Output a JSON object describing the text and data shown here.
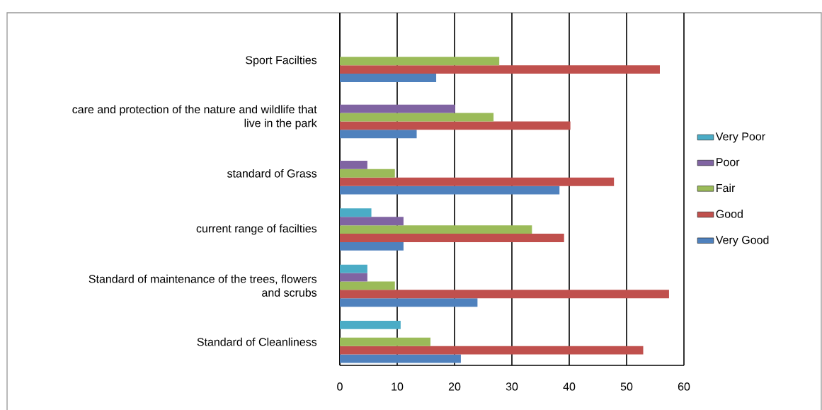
{
  "chart_data": {
    "type": "bar",
    "orientation": "horizontal",
    "categories": [
      "Sport Facilties",
      "care and protection of the nature and wildlife that live in the park",
      "standard of Grass",
      "current range of facilties",
      "Standard of maintenance of the trees, flowers and scrubs",
      "Standard of Cleanliness"
    ],
    "series": [
      {
        "name": "Very Good",
        "color": "#4f81bd",
        "values": [
          16.8,
          13.4,
          38.3,
          11.1,
          24.0,
          21.1
        ]
      },
      {
        "name": "Good",
        "color": "#c0504d",
        "values": [
          55.8,
          40.2,
          47.8,
          39.1,
          57.4,
          52.9
        ]
      },
      {
        "name": "Fair",
        "color": "#9bbb59",
        "values": [
          27.8,
          26.8,
          9.6,
          33.5,
          9.6,
          15.8
        ]
      },
      {
        "name": "Poor",
        "color": "#8064a2",
        "values": [
          null,
          20.1,
          4.8,
          11.1,
          4.8,
          null
        ]
      },
      {
        "name": "Very Poor",
        "color": "#4bacc6",
        "values": [
          null,
          null,
          null,
          5.5,
          4.8,
          10.6
        ]
      }
    ],
    "xlim": [
      0,
      60
    ],
    "xticks": [
      0,
      10,
      20,
      30,
      40,
      50,
      60
    ],
    "grid": "x",
    "legend": "right"
  }
}
